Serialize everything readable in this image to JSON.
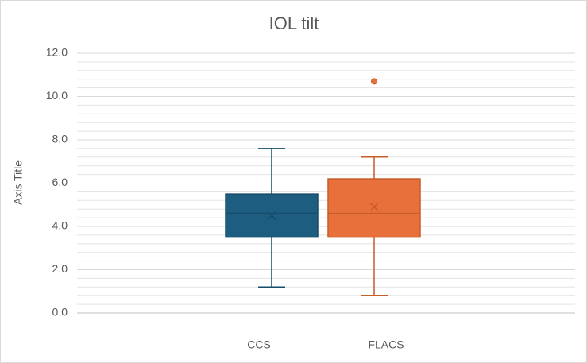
{
  "chart_data": {
    "type": "box",
    "title": "IOL tilt",
    "y_label": "Axis Title",
    "ylim": [
      0,
      12
    ],
    "yticks": [
      {
        "value": 0,
        "label": "0.0"
      },
      {
        "value": 2,
        "label": "2.0"
      },
      {
        "value": 4,
        "label": "4.0"
      },
      {
        "value": 6,
        "label": "6.0"
      },
      {
        "value": 8,
        "label": "8.0"
      },
      {
        "value": 10,
        "label": "10.0"
      },
      {
        "value": 12,
        "label": "12.0"
      }
    ],
    "minor_yticks": [
      0.4,
      0.8,
      1.2,
      1.6,
      2.4,
      2.8,
      3.2,
      3.6,
      4.4,
      4.8,
      5.2,
      5.6,
      6.4,
      6.8,
      7.2,
      7.6,
      8.4,
      8.8,
      9.2,
      9.6,
      10.4,
      10.8,
      11.2,
      11.6
    ],
    "grid": true,
    "series": [
      {
        "name": "CCS",
        "color": "#1c5d80",
        "edge_color": "#174c69",
        "min": 1.2,
        "q1": 3.5,
        "median": 4.6,
        "q3": 5.5,
        "max": 7.6,
        "mean": 4.5,
        "outliers": []
      },
      {
        "name": "FLACS",
        "color": "#e8703a",
        "edge_color": "#c65c28",
        "min": 0.8,
        "q1": 3.5,
        "median": 4.6,
        "q3": 6.2,
        "max": 7.2,
        "mean": 4.9,
        "outliers": [
          10.7
        ]
      }
    ]
  }
}
